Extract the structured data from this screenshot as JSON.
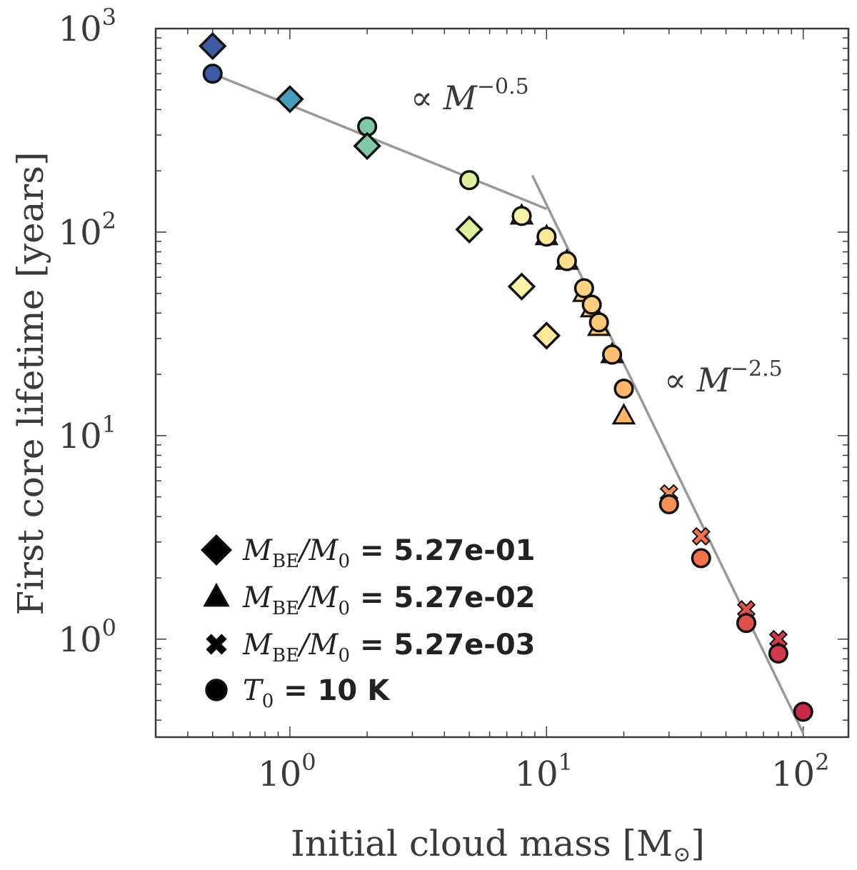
{
  "chart_data": {
    "type": "scatter",
    "xscale": "log",
    "yscale": "log",
    "xlim": [
      0.3,
      150
    ],
    "ylim": [
      0.33,
      1000
    ],
    "xlabel": "Initial cloud mass [M",
    "xlabel_symbol": "⊙",
    "xlabel_close": "]",
    "ylabel": "First core lifetime [years]",
    "x_ticks": [
      {
        "base": "10",
        "exp": "0",
        "value": 1
      },
      {
        "base": "10",
        "exp": "1",
        "value": 10
      },
      {
        "base": "10",
        "exp": "2",
        "value": 100
      }
    ],
    "y_ticks": [
      {
        "base": "10",
        "exp": "0",
        "value": 1
      },
      {
        "base": "10",
        "exp": "1",
        "value": 10
      },
      {
        "base": "10",
        "exp": "2",
        "value": 100
      },
      {
        "base": "10",
        "exp": "3",
        "value": 1000
      }
    ],
    "series": [
      {
        "name": "diamond",
        "marker": "diamond",
        "legend_math": "M",
        "legend_sub1": "BE",
        "legend_slash": "/M",
        "legend_sub2": "0",
        "legend_value": " = 5.27e-01",
        "points": [
          {
            "x": 0.5,
            "y": 820
          },
          {
            "x": 1,
            "y": 450
          },
          {
            "x": 2,
            "y": 265
          },
          {
            "x": 5,
            "y": 103
          },
          {
            "x": 8,
            "y": 54
          },
          {
            "x": 10,
            "y": 31
          }
        ]
      },
      {
        "name": "triangle",
        "marker": "triangle",
        "legend_math": "M",
        "legend_sub1": "BE",
        "legend_slash": "/M",
        "legend_sub2": "0",
        "legend_value": " = 5.27e-02",
        "points": [
          {
            "x": 8,
            "y": 120
          },
          {
            "x": 10,
            "y": 95
          },
          {
            "x": 12,
            "y": 72
          },
          {
            "x": 14,
            "y": 50
          },
          {
            "x": 15,
            "y": 42
          },
          {
            "x": 16,
            "y": 34
          },
          {
            "x": 18,
            "y": 25
          },
          {
            "x": 20,
            "y": 12.5
          }
        ]
      },
      {
        "name": "cross",
        "marker": "cross",
        "legend_math": "M",
        "legend_sub1": "BE",
        "legend_slash": "/M",
        "legend_sub2": "0",
        "legend_value": " = 5.27e-03",
        "points": [
          {
            "x": 30,
            "y": 5.2
          },
          {
            "x": 40,
            "y": 3.2
          },
          {
            "x": 60,
            "y": 1.4
          },
          {
            "x": 80,
            "y": 1.0
          }
        ]
      },
      {
        "name": "circle",
        "marker": "circle",
        "legend_math": "T",
        "legend_sub1": "0",
        "legend_slash": "",
        "legend_sub2": "",
        "legend_value": " = 10 K",
        "points": [
          {
            "x": 0.5,
            "y": 600
          },
          {
            "x": 1,
            "y": 450
          },
          {
            "x": 2,
            "y": 330
          },
          {
            "x": 5,
            "y": 180
          },
          {
            "x": 8,
            "y": 120
          },
          {
            "x": 10,
            "y": 95
          },
          {
            "x": 12,
            "y": 72
          },
          {
            "x": 14,
            "y": 53
          },
          {
            "x": 15,
            "y": 44
          },
          {
            "x": 16,
            "y": 36
          },
          {
            "x": 18,
            "y": 25
          },
          {
            "x": 20,
            "y": 17
          },
          {
            "x": 30,
            "y": 4.6
          },
          {
            "x": 40,
            "y": 2.5
          },
          {
            "x": 60,
            "y": 1.2
          },
          {
            "x": 80,
            "y": 0.85
          },
          {
            "x": 100,
            "y": 0.44
          }
        ]
      }
    ],
    "fit_lines": [
      {
        "x": [
          0.5,
          10
        ],
        "y": [
          600,
          130
        ],
        "label_prefix": "∝ ",
        "label_var": "M",
        "label_exp": "−0.5"
      },
      {
        "x": [
          8.8,
          100
        ],
        "y": [
          190,
          0.345
        ],
        "label_prefix": "∝ ",
        "label_var": "M",
        "label_exp": "−2.5"
      }
    ],
    "colors": {
      "axis": "#3a3a3a",
      "fit_line": "#999999",
      "marker_edge": "#111111",
      "colormap": [
        "#3d5ba5",
        "#3591c0",
        "#4fa8b4",
        "#79c6a9",
        "#a9dca3",
        "#d9ef9a",
        "#f5f8ae",
        "#fee594",
        "#fdc473",
        "#f99d59",
        "#f06f4a",
        "#db4a4c",
        "#c52a49"
      ]
    }
  }
}
